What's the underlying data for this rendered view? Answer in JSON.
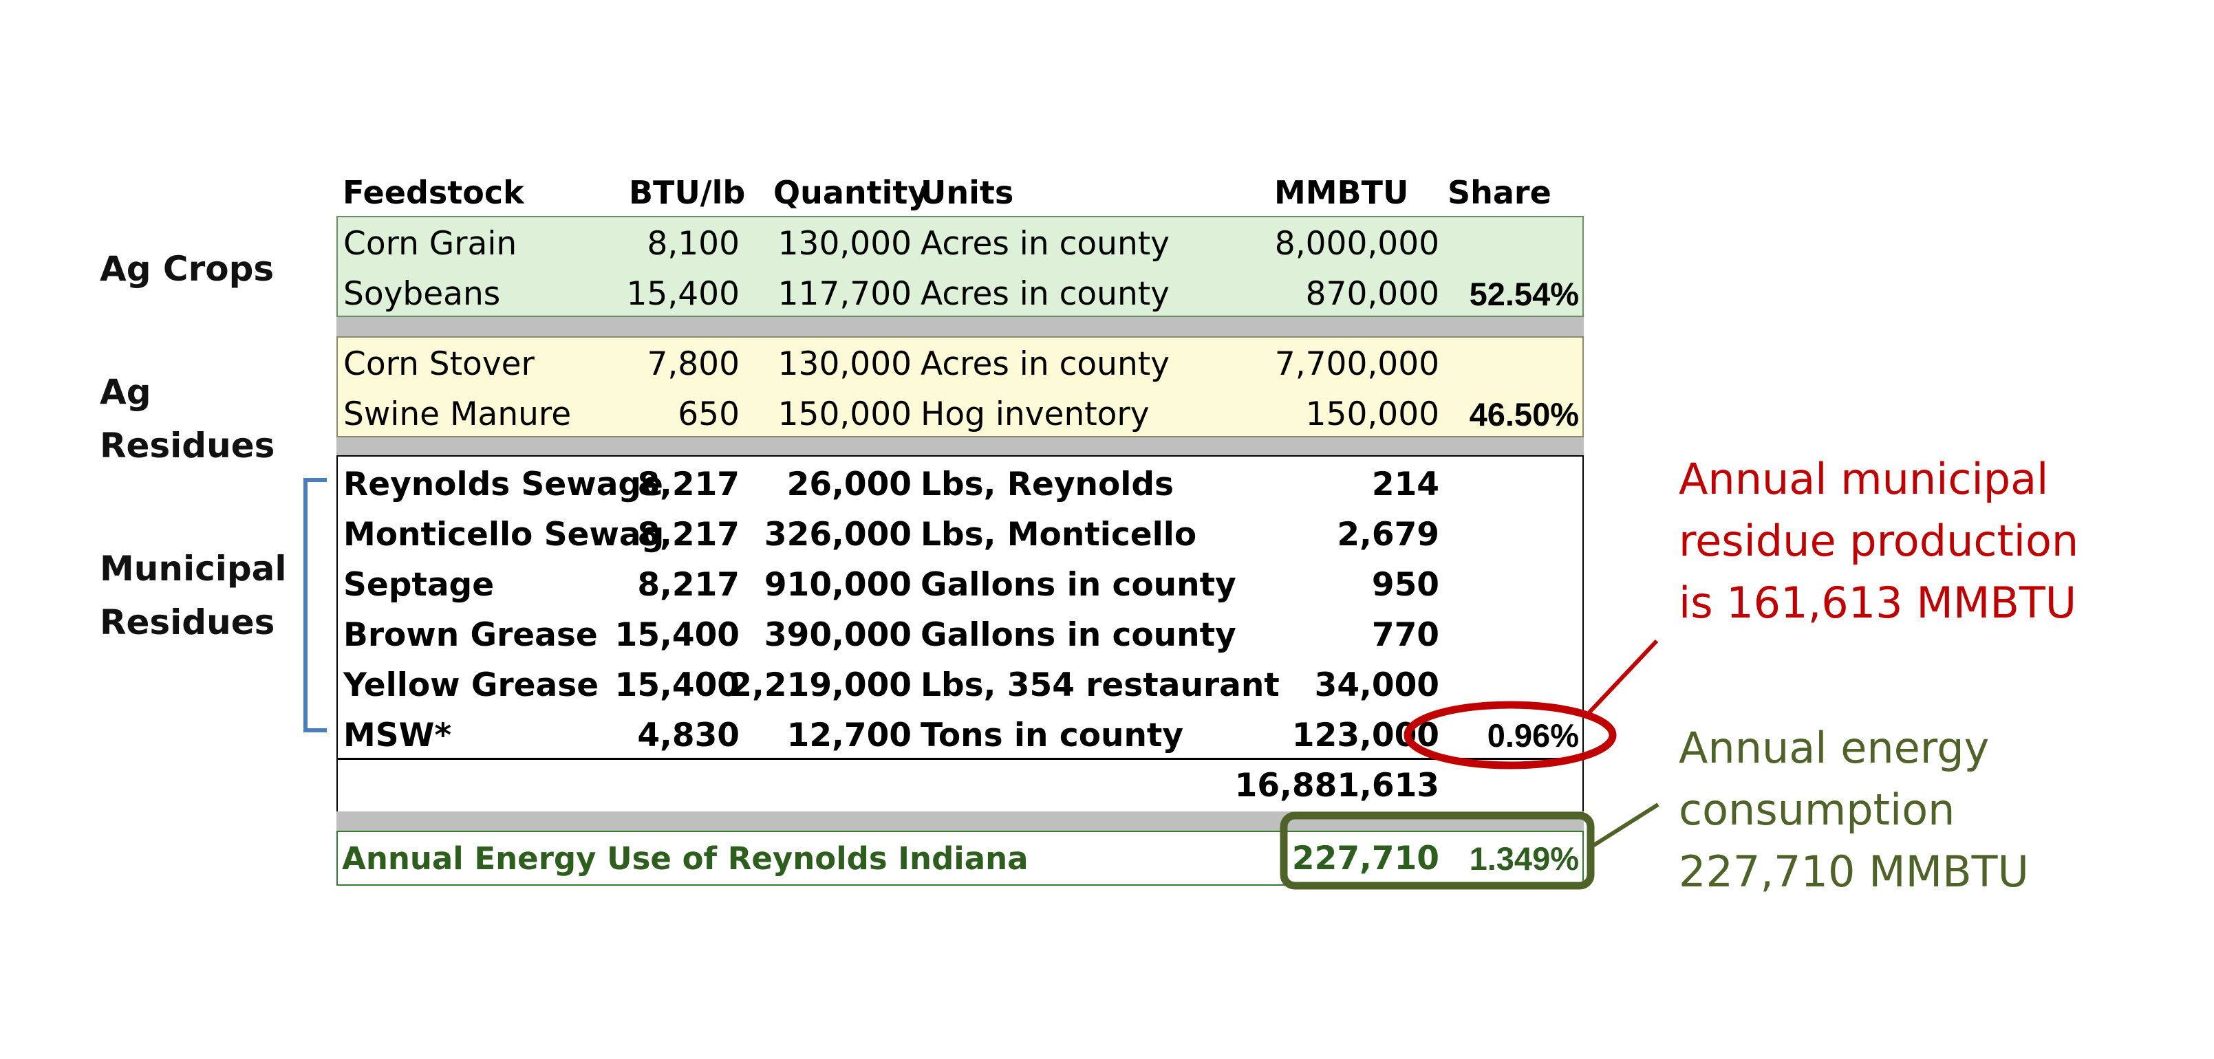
{
  "groups": {
    "ag_crops": "Ag Crops",
    "ag_residues": [
      "Ag",
      "Residues"
    ],
    "municipal_residues": [
      "Municipal",
      "Residues"
    ]
  },
  "headers": {
    "feedstock": "Feedstock",
    "btu": "BTU/lb",
    "quantity": "Quantity",
    "units": "Units",
    "mmbtu": "MMBTU",
    "share": "Share"
  },
  "rows": [
    {
      "feedstock": "Corn Grain",
      "btu": "8,100",
      "quantity": "130,000",
      "units": "Acres in county",
      "mmbtu": "8,000,000",
      "share": ""
    },
    {
      "feedstock": "Soybeans",
      "btu": "15,400",
      "quantity": "117,700",
      "units": "Acres in county",
      "mmbtu": "870,000",
      "share": "52.54%"
    },
    {
      "feedstock": "Corn Stover",
      "btu": "7,800",
      "quantity": "130,000",
      "units": "Acres in county",
      "mmbtu": "7,700,000",
      "share": ""
    },
    {
      "feedstock": "Swine Manure",
      "btu": "650",
      "quantity": "150,000",
      "units": "Hog inventory",
      "mmbtu": "150,000",
      "share": "46.50%"
    },
    {
      "feedstock": "Reynolds Sewage",
      "btu": "8,217",
      "quantity": "26,000",
      "units": "Lbs, Reynolds",
      "mmbtu": "214",
      "share": ""
    },
    {
      "feedstock": "Monticello Sewag",
      "btu": "8,217",
      "quantity": "326,000",
      "units": "Lbs, Monticello",
      "mmbtu": "2,679",
      "share": ""
    },
    {
      "feedstock": "Septage",
      "btu": "8,217",
      "quantity": "910,000",
      "units": "Gallons in county",
      "mmbtu": "950",
      "share": ""
    },
    {
      "feedstock": "Brown Grease",
      "btu": "15,400",
      "quantity": "390,000",
      "units": "Gallons in county",
      "mmbtu": "770",
      "share": ""
    },
    {
      "feedstock": "Yellow Grease",
      "btu": "15,400",
      "quantity": "2,219,000",
      "units": "Lbs, 354 restaurant",
      "mmbtu": "34,000",
      "share": ""
    },
    {
      "feedstock": "MSW*",
      "btu": "4,830",
      "quantity": "12,700",
      "units": "Tons in county",
      "mmbtu": "123,000",
      "share": "0.96%"
    }
  ],
  "total": {
    "mmbtu": "16,881,613"
  },
  "energy_use": {
    "label": "Annual Energy Use of Reynolds Indiana",
    "mmbtu": "227,710",
    "share": "1.349%"
  },
  "callouts": {
    "municipal": [
      "Annual municipal",
      "residue production",
      "is 161,613 MMBTU"
    ],
    "consumption": [
      "Annual energy",
      "consumption",
      "227,710 MMBTU"
    ]
  },
  "colors": {
    "crops_fill": "#dcf1d8",
    "residues_fill": "#fdfad8",
    "separator": "#bfbfbf",
    "bracket": "#4a7ebf",
    "red_accent": "#c00000",
    "green_accent": "#4f6228",
    "energy_text": "#2e5e1e"
  }
}
